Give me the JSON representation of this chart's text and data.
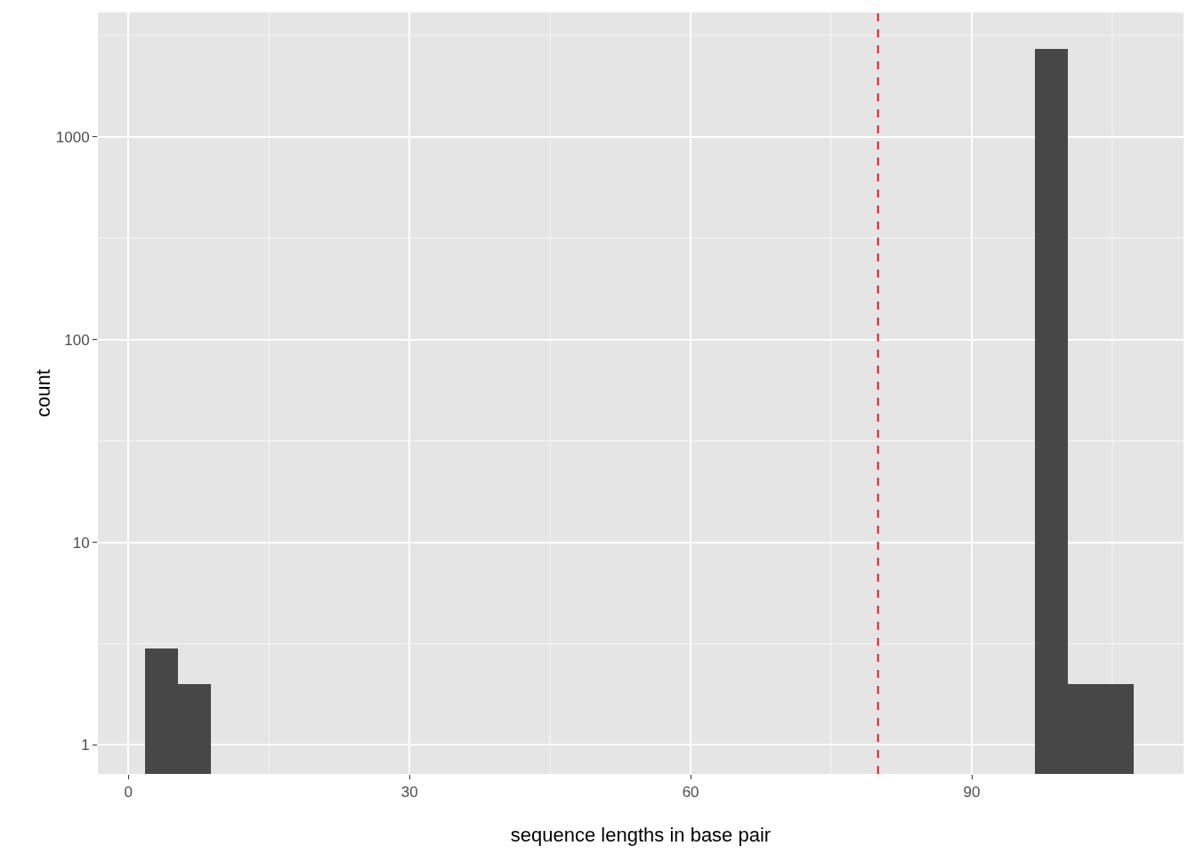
{
  "chart_data": {
    "type": "histogram",
    "xlabel": "sequence lengths in base pair",
    "ylabel": "count",
    "bins": [
      1.82,
      5.34,
      8.85,
      12.37,
      15.88,
      19.4,
      22.92,
      26.43,
      29.95,
      33.46,
      36.98,
      40.5,
      44.01,
      47.53,
      51.04,
      54.56,
      58.08,
      61.59,
      65.11,
      68.62,
      72.14,
      75.66,
      79.17,
      82.69,
      86.2,
      89.72,
      93.24,
      96.75,
      100.27,
      103.78,
      107.3
    ],
    "values": [
      3,
      2,
      null,
      null,
      null,
      null,
      null,
      null,
      null,
      null,
      null,
      null,
      null,
      null,
      null,
      null,
      null,
      null,
      null,
      null,
      null,
      null,
      null,
      null,
      null,
      null,
      null,
      2700,
      2,
      2
    ],
    "color": "#474747",
    "log": true,
    "grid": true,
    "xlim": [
      -3.25,
      112.6
    ],
    "xticks": [
      0,
      30,
      60,
      90
    ],
    "ylim": [
      0.72,
      4100
    ],
    "yticks": [
      1,
      10,
      100,
      1000
    ],
    "ref_lines": [
      {
        "axis": "x",
        "value": 80,
        "color": "#e31a1c",
        "line_style": "dashed"
      }
    ]
  }
}
